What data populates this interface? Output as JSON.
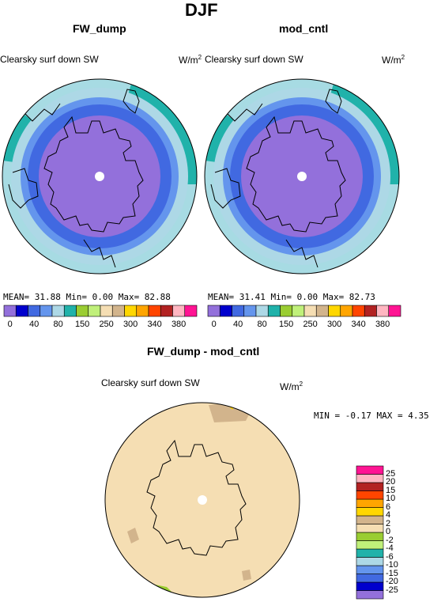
{
  "page_title": "DJF",
  "panels": [
    {
      "title": "FW_dump",
      "left_label": "Clearsky surf down SW",
      "units": "W/m",
      "units_sup": "2",
      "stats": "MEAN=  31.88  Min=    0.00  Max=   82.88"
    },
    {
      "title": "mod_cntl",
      "left_label": "Clearsky surf down SW",
      "units": "W/m",
      "units_sup": "2",
      "stats": "MEAN=  31.41  Min=    0.00  Max=   82.73"
    }
  ],
  "diff_panel": {
    "title": "FW_dump - mod_cntl",
    "left_label": "Clearsky surf down SW",
    "units": "W/m",
    "units_sup": "2",
    "stats": "MIN =   -0.17  MAX =    4.35"
  },
  "colorbar_main": {
    "colors": [
      "#9370db",
      "#0000cd",
      "#4169e1",
      "#6495ed",
      "#add8e6",
      "#20b2aa",
      "#9acd32",
      "#c0f07a",
      "#f5deb3",
      "#d2b48c",
      "#ffd700",
      "#ffa500",
      "#ff4500",
      "#b22222",
      "#ffb6c1",
      "#ff1493"
    ],
    "labels": [
      "0",
      "40",
      "80",
      "150",
      "250",
      "300",
      "340",
      "380"
    ]
  },
  "colorbar_diff": {
    "colors": [
      "#9370db",
      "#0000cd",
      "#4169e1",
      "#6495ed",
      "#add8e6",
      "#20b2aa",
      "#c0f07a",
      "#9acd32",
      "#f5deb3",
      "#d2b48c",
      "#ffd700",
      "#ffa500",
      "#ff4500",
      "#b22222",
      "#ffb6c1",
      "#ff1493"
    ],
    "labels": [
      "-25",
      "-20",
      "-15",
      "-10",
      "-6",
      "-4",
      "-2",
      "0",
      "2",
      "4",
      "6",
      "10",
      "15",
      "20",
      "25"
    ]
  },
  "chart_data": [
    {
      "type": "heatmap",
      "projection": "polar stereographic",
      "title": "FW_dump",
      "subtitle": "Clearsky surf down SW",
      "units": "W/m2",
      "mean": 31.88,
      "min": 0.0,
      "max": 82.88,
      "levels": [
        0,
        40,
        80,
        150,
        250,
        300,
        340,
        380
      ],
      "bands_center_to_edge": [
        {
          "color": "#9370db",
          "range": "0 - 40"
        },
        {
          "color": "#4169e1",
          "range": "40 - 80"
        },
        {
          "color": "#6495ed",
          "range": "80 - 150"
        },
        {
          "color": "#add8e6",
          "range": "150 - 250"
        },
        {
          "color": "#20b2aa",
          "range": "250 - 300"
        }
      ]
    },
    {
      "type": "heatmap",
      "projection": "polar stereographic",
      "title": "mod_cntl",
      "subtitle": "Clearsky surf down SW",
      "units": "W/m2",
      "mean": 31.41,
      "min": 0.0,
      "max": 82.73,
      "levels": [
        0,
        40,
        80,
        150,
        250,
        300,
        340,
        380
      ],
      "bands_center_to_edge": [
        {
          "color": "#9370db",
          "range": "0 - 40"
        },
        {
          "color": "#4169e1",
          "range": "40 - 80"
        },
        {
          "color": "#6495ed",
          "range": "80 - 150"
        },
        {
          "color": "#add8e6",
          "range": "150 - 250"
        },
        {
          "color": "#20b2aa",
          "range": "250 - 300"
        }
      ]
    },
    {
      "type": "heatmap",
      "projection": "polar stereographic",
      "title": "FW_dump - mod_cntl",
      "subtitle": "Clearsky surf down SW",
      "units": "W/m2",
      "min": -0.17,
      "max": 4.35,
      "levels": [
        -25,
        -20,
        -15,
        -10,
        -6,
        -4,
        -2,
        0,
        2,
        4,
        6,
        10,
        15,
        20,
        25
      ],
      "dominant_range": "0 - 2",
      "patches": [
        {
          "range": "2 - 4",
          "region": "top"
        },
        {
          "range": "4 - 6",
          "region": "top"
        },
        {
          "range": "2 - 4",
          "region": "lower-left"
        },
        {
          "range": "2 - 4",
          "region": "lower-right"
        },
        {
          "range": "-2 - 0",
          "region": "bottom-left"
        }
      ]
    }
  ]
}
